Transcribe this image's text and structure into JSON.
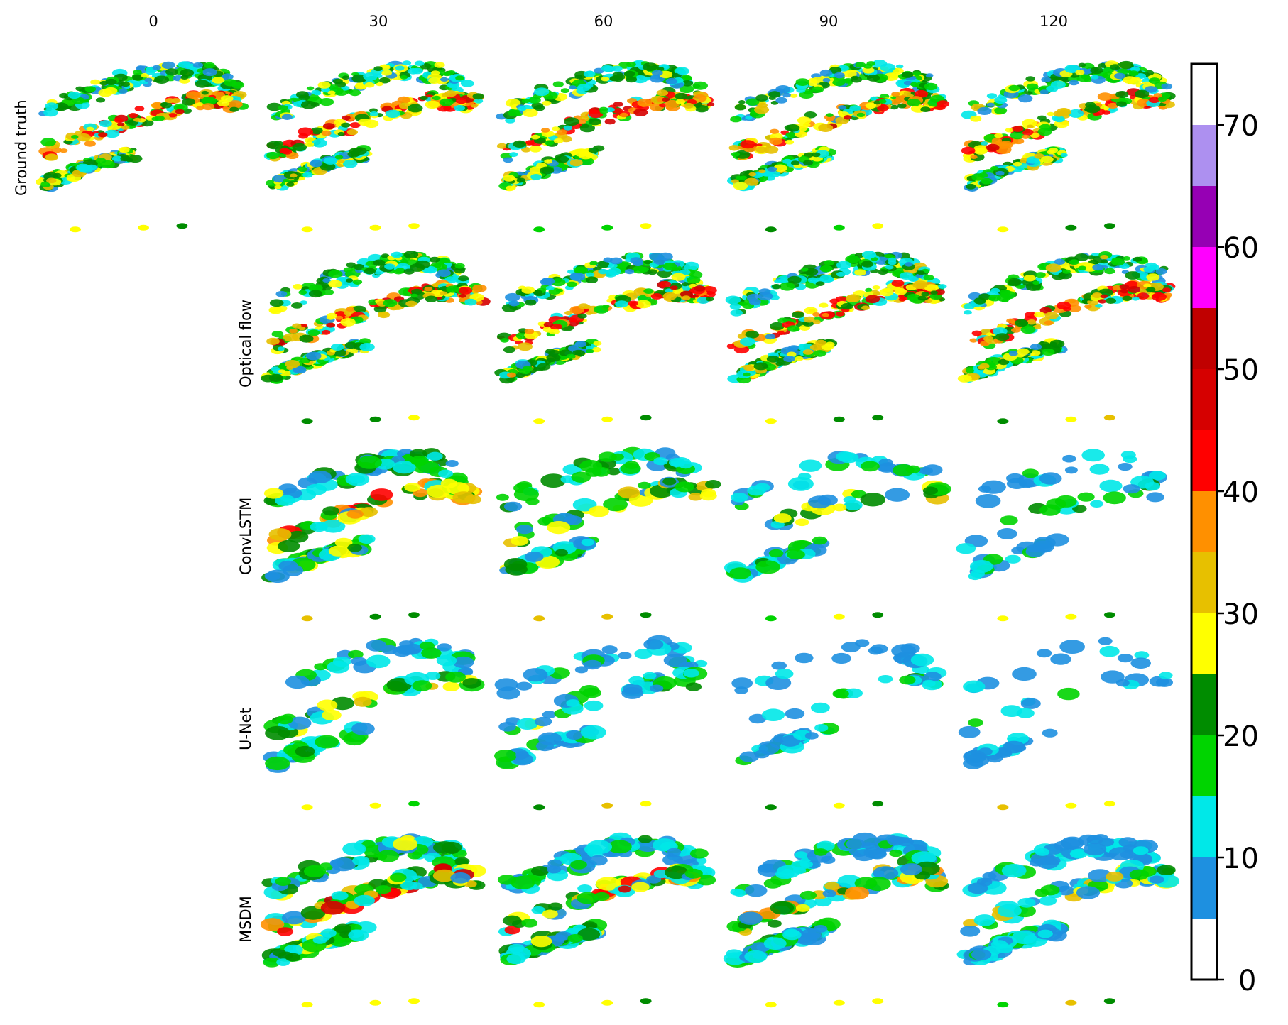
{
  "chart_data": {
    "type": "heatmap",
    "title": "",
    "columns": [
      "0",
      "30",
      "60",
      "90",
      "120"
    ],
    "rows": [
      "Ground truth",
      "Optical flow",
      "ConvLSTM",
      "U-Net",
      "MSDM"
    ],
    "panels_present": [
      [
        true,
        true,
        true,
        true,
        true
      ],
      [
        false,
        true,
        true,
        true,
        true
      ],
      [
        false,
        true,
        true,
        true,
        true
      ],
      [
        false,
        true,
        true,
        true,
        true
      ],
      [
        false,
        true,
        true,
        true,
        true
      ]
    ],
    "colorbar": {
      "range": [
        0,
        75
      ],
      "ticks": [
        "0",
        "10",
        "20",
        "30",
        "40",
        "50",
        "60",
        "70"
      ],
      "bins": [
        {
          "from": 0,
          "to": 5,
          "color": "#ffffff"
        },
        {
          "from": 5,
          "to": 10,
          "color": "#1e90e0"
        },
        {
          "from": 10,
          "to": 15,
          "color": "#00e8e8"
        },
        {
          "from": 15,
          "to": 20,
          "color": "#00d400"
        },
        {
          "from": 20,
          "to": 25,
          "color": "#008c00"
        },
        {
          "from": 25,
          "to": 30,
          "color": "#ffff00"
        },
        {
          "from": 30,
          "to": 35,
          "color": "#e7c000"
        },
        {
          "from": 35,
          "to": 40,
          "color": "#ff9000"
        },
        {
          "from": 40,
          "to": 45,
          "color": "#ff0000"
        },
        {
          "from": 45,
          "to": 50,
          "color": "#d60000"
        },
        {
          "from": 50,
          "to": 55,
          "color": "#c00000"
        },
        {
          "from": 55,
          "to": 60,
          "color": "#ff00ff"
        },
        {
          "from": 60,
          "to": 65,
          "color": "#9600b4"
        },
        {
          "from": 65,
          "to": 70,
          "color": "#ad90f0"
        },
        {
          "from": 70,
          "to": 75,
          "color": "#ffffff"
        }
      ]
    },
    "grid": false
  }
}
